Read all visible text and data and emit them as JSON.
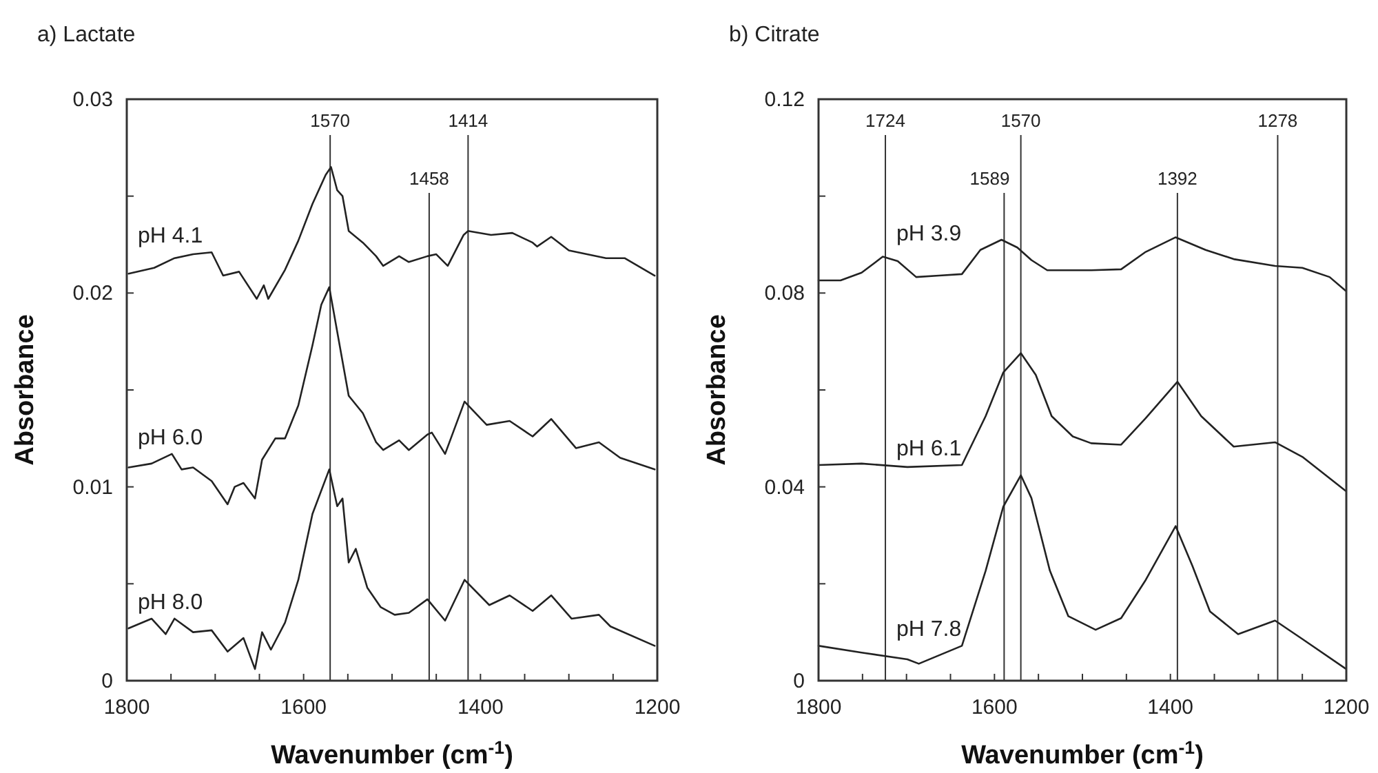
{
  "chart_data": [
    {
      "type": "line",
      "title": "a) Lactate",
      "xlabel": "Wavenumber (cm$^{-1}$)",
      "ylabel": "Absorbance",
      "xlim": [
        1800,
        1200
      ],
      "ylim": [
        0,
        0.03
      ],
      "xticks": [
        1800,
        {
          "value": 1750,
          "label": null
        },
        {
          "value": 1700,
          "label": null
        },
        {
          "value": 1650,
          "label": null
        },
        1600,
        {
          "value": 1550,
          "label": null
        },
        {
          "value": 1500,
          "label": null
        },
        {
          "value": 1450,
          "label": null
        },
        1400,
        {
          "value": 1350,
          "label": null
        },
        {
          "value": 1300,
          "label": null
        },
        {
          "value": 1250,
          "label": null
        },
        1200
      ],
      "yticks": [
        0,
        {
          "value": 0.005,
          "label": null
        },
        0.01,
        {
          "value": 0.015,
          "label": null
        },
        0.02,
        {
          "value": 0.025,
          "label": null
        },
        0.03
      ],
      "legend": false,
      "grid": false,
      "ref_lines": [
        {
          "axis": "x",
          "value": 1570,
          "label": "1570",
          "color": "#333333"
        },
        {
          "axis": "x",
          "value": 1458,
          "label": "1458",
          "color": "#333333"
        },
        {
          "axis": "x",
          "value": 1414,
          "label": "1414",
          "color": "#333333"
        }
      ],
      "series": [
        {
          "name": "pH 4.1",
          "color": "#222222",
          "x": [
            1798,
            1769,
            1746,
            1725,
            1704,
            1691,
            1673,
            1653,
            1645,
            1640,
            1621,
            1606,
            1590,
            1575,
            1569,
            1562,
            1556,
            1549,
            1533,
            1518,
            1510,
            1492,
            1481,
            1460,
            1450,
            1437,
            1419,
            1414,
            1388,
            1364,
            1341,
            1336,
            1320,
            1300,
            1258,
            1237,
            1203
          ],
          "values": [
            0.021,
            0.0213,
            0.0218,
            0.022,
            0.0221,
            0.0209,
            0.0211,
            0.0197,
            0.0204,
            0.0197,
            0.0212,
            0.0227,
            0.0246,
            0.0261,
            0.0265,
            0.0253,
            0.025,
            0.0232,
            0.0226,
            0.0219,
            0.0214,
            0.0219,
            0.0216,
            0.0219,
            0.022,
            0.0214,
            0.023,
            0.0232,
            0.023,
            0.0231,
            0.0226,
            0.0224,
            0.0229,
            0.0222,
            0.0218,
            0.0218,
            0.0209
          ]
        },
        {
          "name": "pH 6.0",
          "color": "#222222",
          "x": [
            1798,
            1772,
            1749,
            1738,
            1725,
            1704,
            1686,
            1678,
            1668,
            1655,
            1647,
            1632,
            1621,
            1606,
            1590,
            1580,
            1571,
            1562,
            1549,
            1533,
            1518,
            1510,
            1492,
            1481,
            1460,
            1455,
            1440,
            1418,
            1393,
            1367,
            1341,
            1320,
            1292,
            1266,
            1242,
            1203
          ],
          "values": [
            0.011,
            0.0112,
            0.0117,
            0.0109,
            0.011,
            0.0103,
            0.0091,
            0.01,
            0.0102,
            0.0094,
            0.0114,
            0.0125,
            0.0125,
            0.0142,
            0.0173,
            0.0194,
            0.0203,
            0.018,
            0.0147,
            0.0138,
            0.0123,
            0.0119,
            0.0124,
            0.0119,
            0.0127,
            0.0128,
            0.0117,
            0.0144,
            0.0132,
            0.0134,
            0.0126,
            0.0135,
            0.012,
            0.0123,
            0.0115,
            0.0109
          ]
        },
        {
          "name": "pH 8.0",
          "color": "#222222",
          "x": [
            1798,
            1772,
            1756,
            1746,
            1725,
            1704,
            1686,
            1668,
            1655,
            1647,
            1637,
            1621,
            1606,
            1590,
            1571,
            1562,
            1556,
            1549,
            1541,
            1528,
            1513,
            1497,
            1481,
            1460,
            1440,
            1418,
            1390,
            1367,
            1341,
            1320,
            1297,
            1266,
            1253,
            1203
          ],
          "values": [
            0.0027,
            0.0032,
            0.0024,
            0.0032,
            0.0025,
            0.0026,
            0.0015,
            0.0022,
            0.0006,
            0.0025,
            0.0016,
            0.003,
            0.0052,
            0.0086,
            0.0109,
            0.009,
            0.0094,
            0.0061,
            0.0068,
            0.0048,
            0.0038,
            0.0034,
            0.0035,
            0.0042,
            0.0031,
            0.0052,
            0.0039,
            0.0044,
            0.0036,
            0.0044,
            0.0032,
            0.0034,
            0.0028,
            0.0018
          ]
        }
      ]
    },
    {
      "type": "line",
      "title": "b) Citrate",
      "xlabel": "Wavenumber (cm$^{-1}$)",
      "ylabel": "Absorbance",
      "xlim": [
        1800,
        1200
      ],
      "ylim": [
        0,
        0.12
      ],
      "xticks": [
        1800,
        {
          "value": 1750,
          "label": null
        },
        {
          "value": 1700,
          "label": null
        },
        {
          "value": 1650,
          "label": null
        },
        1600,
        {
          "value": 1550,
          "label": null
        },
        {
          "value": 1500,
          "label": null
        },
        {
          "value": 1450,
          "label": null
        },
        1400,
        {
          "value": 1350,
          "label": null
        },
        {
          "value": 1300,
          "label": null
        },
        {
          "value": 1250,
          "label": null
        },
        1200
      ],
      "yticks": [
        0,
        {
          "value": 0.02,
          "label": null
        },
        0.04,
        {
          "value": 0.06,
          "label": null
        },
        0.08,
        {
          "value": 0.1,
          "label": null
        },
        0.12
      ],
      "legend": false,
      "grid": false,
      "ref_lines": [
        {
          "axis": "x",
          "value": 1724,
          "label": "1724",
          "color": "#333333"
        },
        {
          "axis": "x",
          "value": 1589,
          "label": "1589",
          "color": "#333333"
        },
        {
          "axis": "x",
          "value": 1570,
          "label": "1570",
          "color": "#333333"
        },
        {
          "axis": "x",
          "value": 1392,
          "label": "1392",
          "color": "#333333"
        },
        {
          "axis": "x",
          "value": 1278,
          "label": "1278",
          "color": "#333333"
        }
      ],
      "series": [
        {
          "name": "pH 3.9",
          "color": "#222222",
          "x": [
            1800,
            1775,
            1751,
            1727,
            1710,
            1689,
            1663,
            1637,
            1616,
            1592,
            1574,
            1558,
            1540,
            1516,
            1490,
            1456,
            1428,
            1394,
            1360,
            1328,
            1281,
            1250,
            1219,
            1201
          ],
          "values": [
            0.0826,
            0.0826,
            0.0842,
            0.0875,
            0.0866,
            0.0833,
            0.0836,
            0.0839,
            0.0889,
            0.091,
            0.0894,
            0.0868,
            0.0847,
            0.0847,
            0.0847,
            0.0849,
            0.0885,
            0.0915,
            0.0889,
            0.087,
            0.0856,
            0.0852,
            0.0833,
            0.0805
          ]
        },
        {
          "name": "pH 6.1",
          "color": "#222222",
          "x": [
            1800,
            1751,
            1699,
            1637,
            1610,
            1590,
            1570,
            1553,
            1535,
            1511,
            1490,
            1456,
            1428,
            1392,
            1365,
            1328,
            1281,
            1250,
            1201
          ],
          "values": [
            0.0445,
            0.0448,
            0.0441,
            0.0445,
            0.0546,
            0.0636,
            0.0676,
            0.0631,
            0.0546,
            0.0504,
            0.049,
            0.0487,
            0.0542,
            0.0617,
            0.0546,
            0.0483,
            0.0492,
            0.0462,
            0.0392
          ]
        },
        {
          "name": "pH 7.8",
          "color": "#222222",
          "x": [
            1800,
            1751,
            1699,
            1686,
            1637,
            1610,
            1590,
            1570,
            1558,
            1537,
            1516,
            1485,
            1456,
            1428,
            1394,
            1375,
            1355,
            1323,
            1281,
            1250,
            1201
          ],
          "values": [
            0.0072,
            0.0058,
            0.0044,
            0.0035,
            0.0072,
            0.0227,
            0.0359,
            0.0424,
            0.0377,
            0.0227,
            0.0133,
            0.0105,
            0.0129,
            0.0208,
            0.0319,
            0.0237,
            0.0143,
            0.0096,
            0.0124,
            0.0086,
            0.0025
          ]
        }
      ]
    }
  ]
}
